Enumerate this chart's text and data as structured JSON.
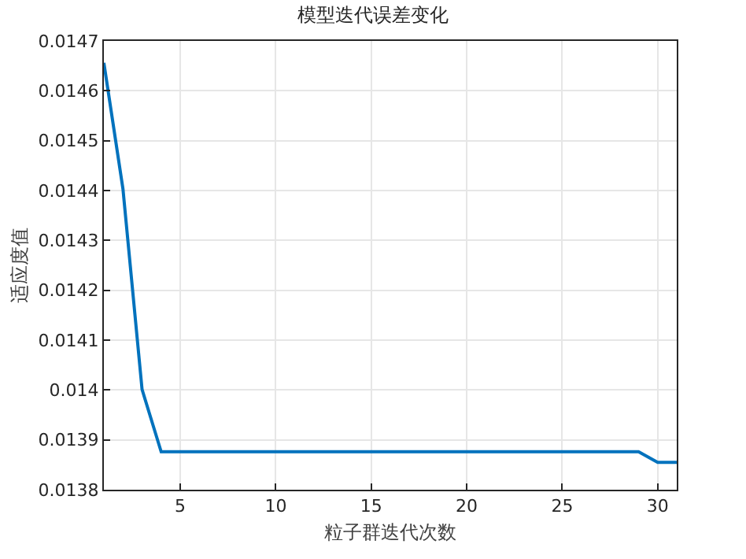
{
  "chart_data": {
    "type": "line",
    "title": "模型迭代误差变化",
    "xlabel": "粒子群迭代次数",
    "ylabel": "适应度值",
    "x": [
      1,
      2,
      3,
      4,
      5,
      6,
      7,
      8,
      9,
      10,
      11,
      12,
      13,
      14,
      15,
      16,
      17,
      18,
      19,
      20,
      21,
      22,
      23,
      24,
      25,
      26,
      27,
      28,
      29,
      30,
      31
    ],
    "series": [
      {
        "color": "#0072bd",
        "values": [
          0.014656,
          0.014403,
          0.014001,
          0.013876,
          0.013876,
          0.013876,
          0.013876,
          0.013876,
          0.013876,
          0.013876,
          0.013876,
          0.013876,
          0.013876,
          0.013876,
          0.013876,
          0.013876,
          0.013876,
          0.013876,
          0.013876,
          0.013876,
          0.013876,
          0.013876,
          0.013876,
          0.013876,
          0.013876,
          0.013876,
          0.013876,
          0.013876,
          0.013876,
          0.013855,
          0.013855
        ]
      }
    ],
    "xlim": [
      1,
      31
    ],
    "xticks": [
      5,
      10,
      15,
      20,
      25,
      30
    ],
    "ylim": [
      0.0138,
      0.0147
    ],
    "yticks": [
      0.0138,
      0.0139,
      0.014,
      0.0141,
      0.0142,
      0.0143,
      0.0144,
      0.0145,
      0.0146,
      0.0147
    ],
    "grid": true,
    "marker": "none",
    "line_style": "solid"
  }
}
